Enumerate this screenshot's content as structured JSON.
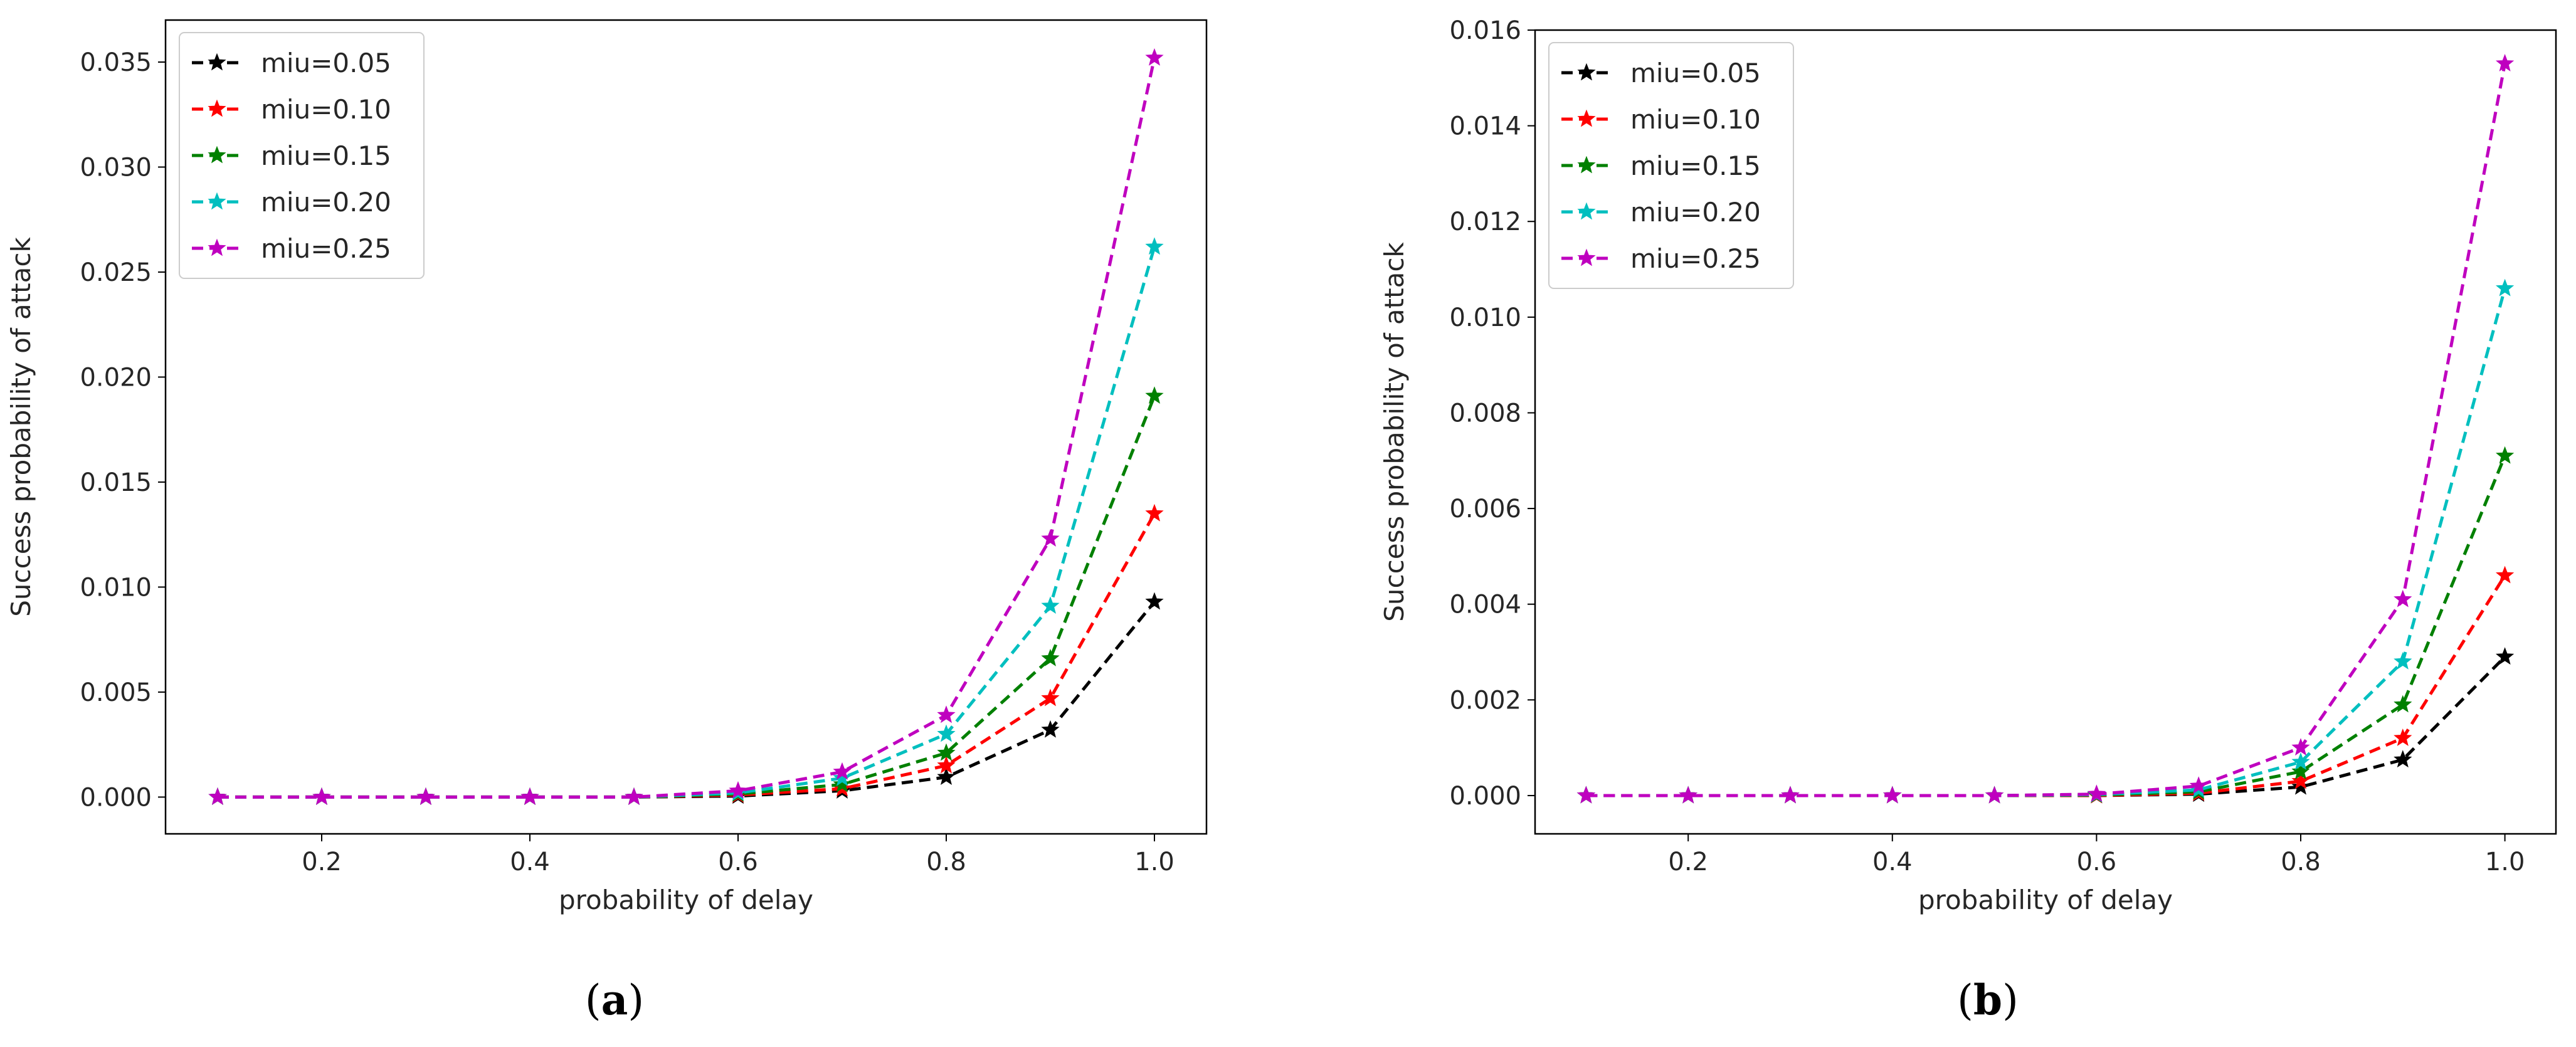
{
  "chart_data": [
    {
      "type": "line",
      "panel_label": "(a)",
      "panel_letter": "a",
      "title": "",
      "xlabel": "probability of delay",
      "ylabel": "Success probability of attack",
      "xlim": [
        0.05,
        1.05
      ],
      "ylim": [
        -0.00175,
        0.037
      ],
      "xticks": [
        0.2,
        0.4,
        0.6,
        0.8,
        1.0
      ],
      "xtick_labels": [
        "0.2",
        "0.4",
        "0.6",
        "0.8",
        "1.0"
      ],
      "yticks": [
        0.0,
        0.005,
        0.01,
        0.015,
        0.02,
        0.025,
        0.03,
        0.035
      ],
      "ytick_labels": [
        "0.000",
        "0.005",
        "0.010",
        "0.015",
        "0.020",
        "0.025",
        "0.030",
        "0.035"
      ],
      "legend_position": "top-left",
      "x": [
        0.1,
        0.2,
        0.3,
        0.4,
        0.5,
        0.6,
        0.7,
        0.8,
        0.9,
        1.0
      ],
      "series": [
        {
          "name": "miu=0.05",
          "color": "#000000",
          "values": [
            0.0,
            0.0,
            0.0,
            0.0,
            0.0,
            5e-05,
            0.0003,
            0.00095,
            0.0032,
            0.0093
          ]
        },
        {
          "name": "miu=0.10",
          "color": "#ff0000",
          "values": [
            0.0,
            0.0,
            0.0,
            0.0,
            0.0,
            0.0001,
            0.0004,
            0.0015,
            0.0047,
            0.0135
          ]
        },
        {
          "name": "miu=0.15",
          "color": "#008000",
          "values": [
            0.0,
            0.0,
            0.0,
            0.0,
            0.0,
            0.00015,
            0.0006,
            0.0021,
            0.0066,
            0.0191
          ]
        },
        {
          "name": "miu=0.20",
          "color": "#00bfbf",
          "values": [
            0.0,
            0.0,
            0.0,
            0.0,
            0.0,
            0.0002,
            0.0009,
            0.003,
            0.0091,
            0.0262
          ]
        },
        {
          "name": "miu=0.25",
          "color": "#bf00bf",
          "values": [
            0.0,
            0.0,
            0.0,
            0.0,
            0.0,
            0.0003,
            0.0012,
            0.0039,
            0.0123,
            0.0352
          ]
        }
      ]
    },
    {
      "type": "line",
      "panel_label": "(b)",
      "panel_letter": "b",
      "title": "",
      "xlabel": "probability of delay",
      "ylabel": "Success probability of attack",
      "xlim": [
        0.05,
        1.05
      ],
      "ylim": [
        -0.0008,
        0.016
      ],
      "xticks": [
        0.2,
        0.4,
        0.6,
        0.8,
        1.0
      ],
      "xtick_labels": [
        "0.2",
        "0.4",
        "0.6",
        "0.8",
        "1.0"
      ],
      "yticks": [
        0.0,
        0.002,
        0.004,
        0.006,
        0.008,
        0.01,
        0.012,
        0.014,
        0.016
      ],
      "ytick_labels": [
        "0.000",
        "0.002",
        "0.004",
        "0.006",
        "0.008",
        "0.010",
        "0.012",
        "0.014",
        "0.016"
      ],
      "legend_position": "top-left",
      "x": [
        0.1,
        0.2,
        0.3,
        0.4,
        0.5,
        0.6,
        0.7,
        0.8,
        0.9,
        1.0
      ],
      "series": [
        {
          "name": "miu=0.05",
          "color": "#000000",
          "values": [
            0.0,
            0.0,
            0.0,
            0.0,
            0.0,
            0.0,
            3e-05,
            0.00018,
            0.00075,
            0.0029
          ]
        },
        {
          "name": "miu=0.10",
          "color": "#ff0000",
          "values": [
            0.0,
            0.0,
            0.0,
            0.0,
            0.0,
            0.0,
            5e-05,
            0.0003,
            0.0012,
            0.0046
          ]
        },
        {
          "name": "miu=0.15",
          "color": "#008000",
          "values": [
            0.0,
            0.0,
            0.0,
            0.0,
            0.0,
            1e-05,
            8e-05,
            0.0005,
            0.0019,
            0.0071
          ]
        },
        {
          "name": "miu=0.20",
          "color": "#00bfbf",
          "values": [
            0.0,
            0.0,
            0.0,
            0.0,
            0.0,
            2e-05,
            0.00012,
            0.0007,
            0.0028,
            0.0106
          ]
        },
        {
          "name": "miu=0.25",
          "color": "#bf00bf",
          "values": [
            0.0,
            0.0,
            0.0,
            0.0,
            0.0,
            3e-05,
            0.0002,
            0.001,
            0.0041,
            0.0153
          ]
        }
      ]
    }
  ]
}
